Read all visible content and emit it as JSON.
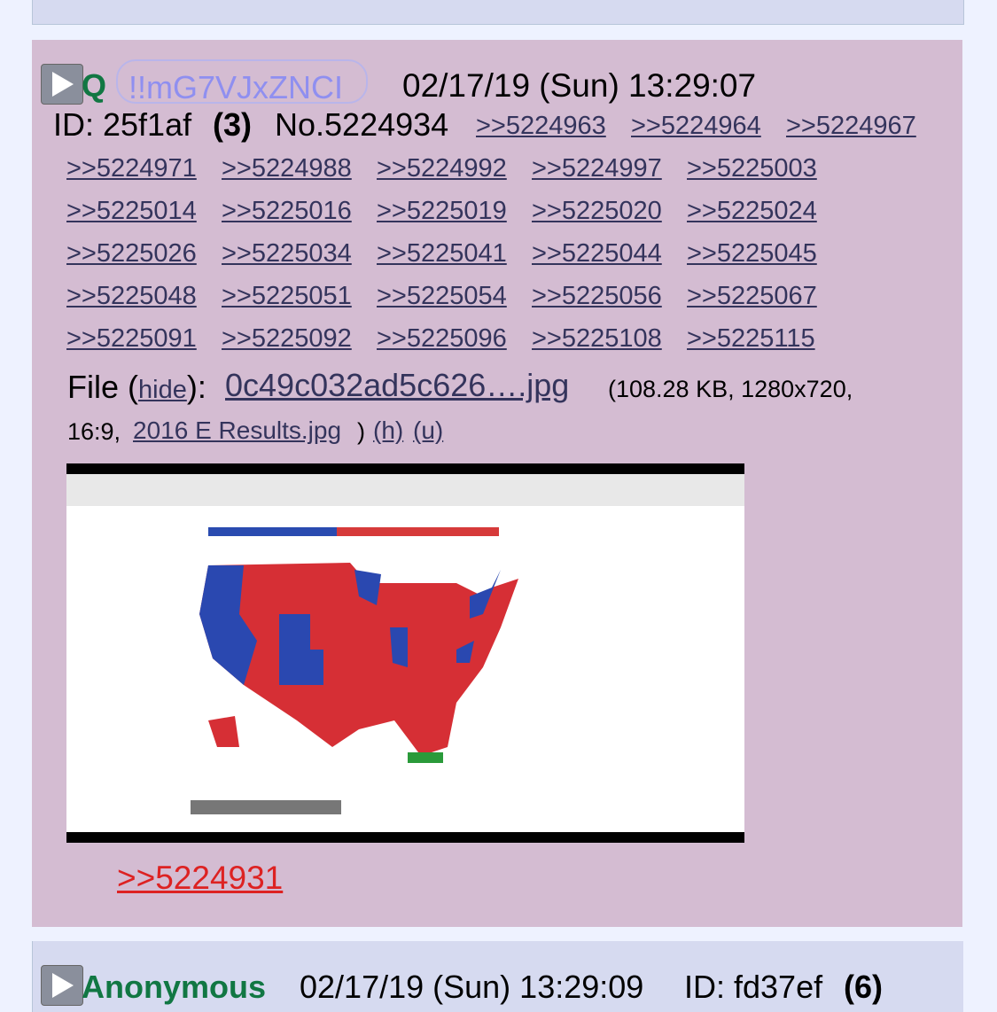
{
  "post_above": {},
  "post": {
    "name": "Q",
    "tripcode": "!!mG7VJxZNCI",
    "date": "02/17/19 (Sun) 13:29:07",
    "id_label": "ID: 25f1af",
    "id_count": "(3)",
    "number": "No.5224934",
    "replies": [
      ">>5224963",
      ">>5224964",
      ">>5224967",
      ">>5224971",
      ">>5224988",
      ">>5224992",
      ">>5224997",
      ">>5225003",
      ">>5225014",
      ">>5225016",
      ">>5225019",
      ">>5225020",
      ">>5225024",
      ">>5225026",
      ">>5225034",
      ">>5225041",
      ">>5225044",
      ">>5225045",
      ">>5225048",
      ">>5225051",
      ">>5225054",
      ">>5225056",
      ">>5225067",
      ">>5225091",
      ">>5225092",
      ">>5225096",
      ">>5225108",
      ">>5225115"
    ],
    "file": {
      "label": "File (",
      "hide": "hide",
      "colon": "):",
      "filename": "0c49c032ad5c626….jpg",
      "info": "(108.28 KB, 1280x720,",
      "info2": "16:9,",
      "original": "2016 E Results.jpg",
      "close": ")",
      "h": "(h)",
      "u": "(u)"
    },
    "body_link": ">>5224931"
  },
  "next_post": {
    "name": "Anonymous",
    "date": "02/17/19 (Sun) 13:29:09",
    "id_label": "ID: fd37ef",
    "id_count": "(6)"
  }
}
